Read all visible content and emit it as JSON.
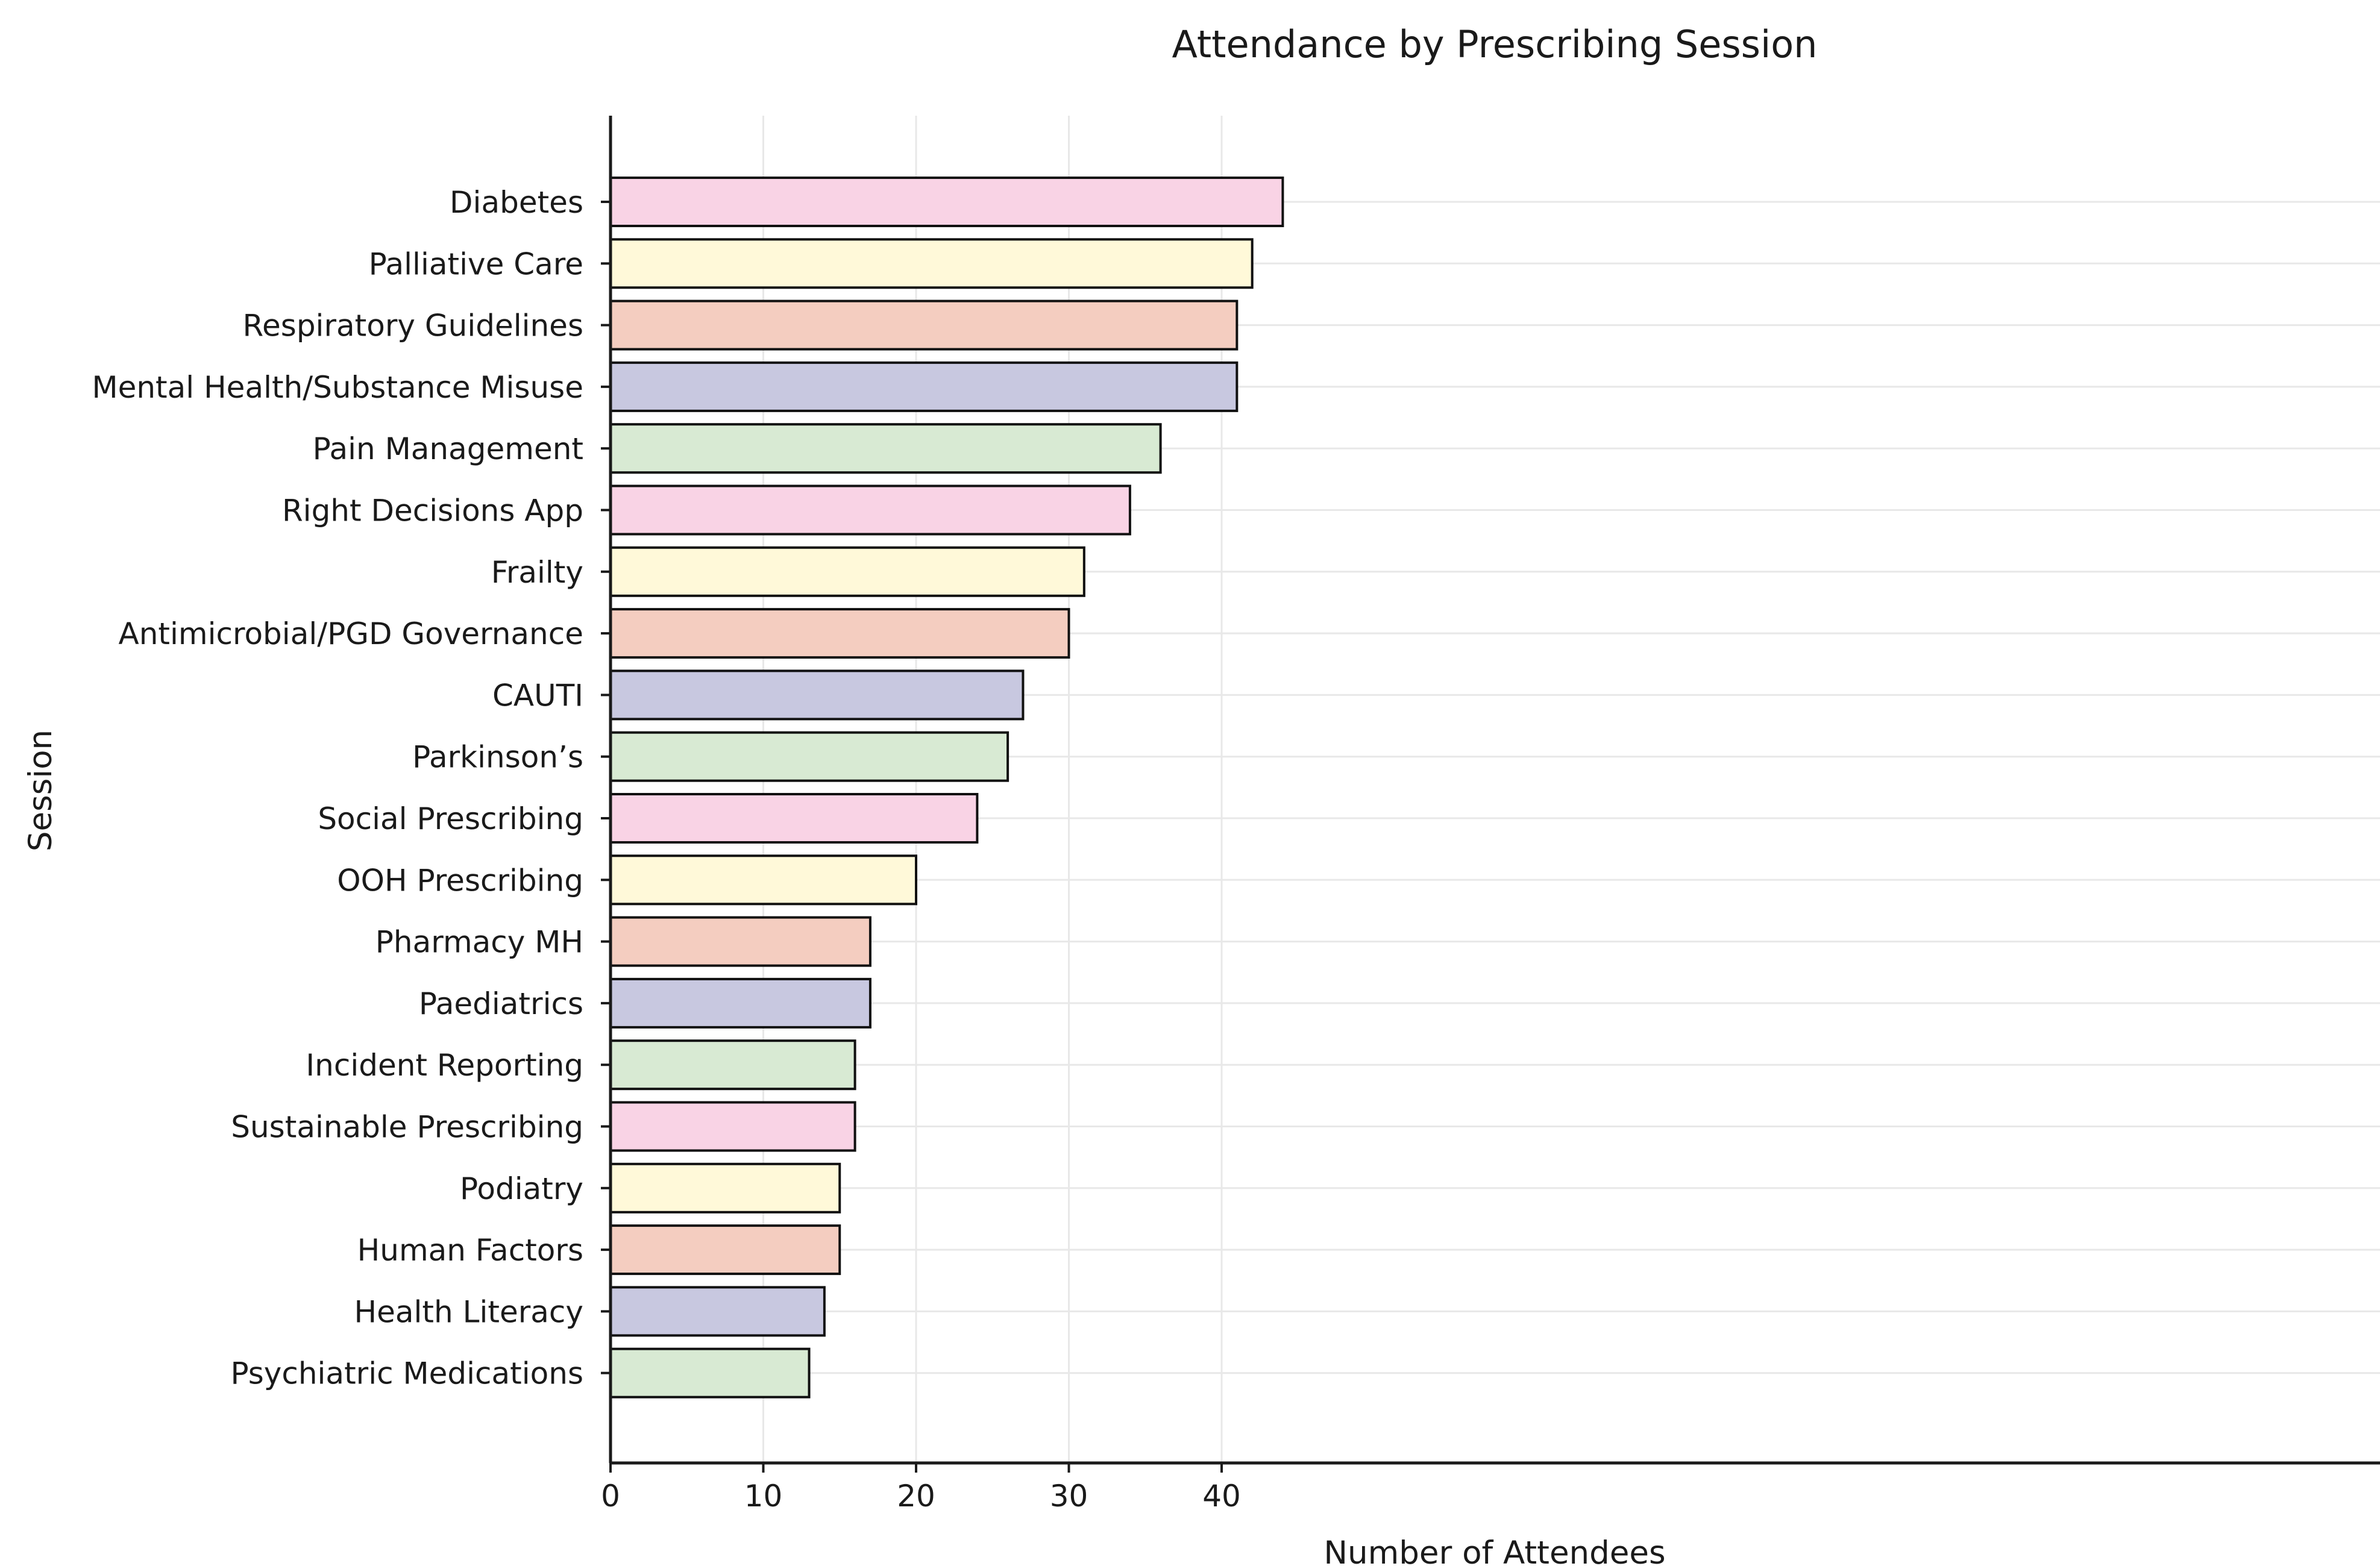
{
  "chart_data": {
    "type": "bar",
    "orientation": "horizontal",
    "title": "Attendance by Prescribing Session",
    "xlabel": "Number of Attendees",
    "ylabel": "Session",
    "xlim": [
      0,
      46
    ],
    "xticks": [
      0,
      10,
      20,
      30,
      40
    ],
    "grid": true,
    "categories": [
      "Diabetes",
      "Palliative Care",
      "Respiratory Guidelines",
      "Mental Health/Substance Misuse",
      "Pain Management",
      "Right Decisions App",
      "Frailty",
      "Antimicrobial/PGD Governance",
      "CAUTI",
      "Parkinson’s",
      "Social Prescribing",
      "OOH Prescribing",
      "Pharmacy MH",
      "Paediatrics",
      "Incident Reporting",
      "Sustainable Prescribing",
      "Podiatry",
      "Human Factors",
      "Health Literacy",
      "Psychiatric Medications"
    ],
    "values": [
      44,
      42,
      41,
      41,
      36,
      34,
      31,
      30,
      27,
      26,
      24,
      20,
      17,
      17,
      16,
      16,
      15,
      15,
      14,
      13
    ],
    "bar_colors": [
      "#f9d3e5",
      "#fff9d9",
      "#f4cdc0",
      "#c8c8e0",
      "#d8ead3"
    ]
  }
}
